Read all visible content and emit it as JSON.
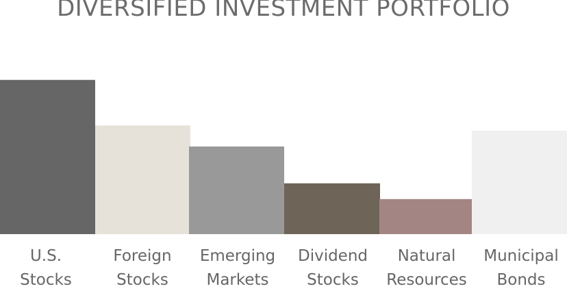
{
  "chart_data": {
    "type": "bar",
    "title": "DIVERSIFIED INVESTMENT PORTFOLIO",
    "categories": [
      "U.S.\nStocks",
      "Foreign\nStocks",
      "Emerging\nMarkets",
      "Dividend\nStocks",
      "Natural\nResources",
      "Municipal\nBonds"
    ],
    "values": [
      88,
      62,
      50,
      29,
      20,
      59
    ],
    "colors": [
      "#666666",
      "#e6e2da",
      "#999999",
      "#6e6458",
      "#a38683",
      "#f1f0f0"
    ],
    "xlabel": "",
    "ylabel": "",
    "ylim": [
      0,
      100
    ],
    "grid": false,
    "legend": "none"
  }
}
